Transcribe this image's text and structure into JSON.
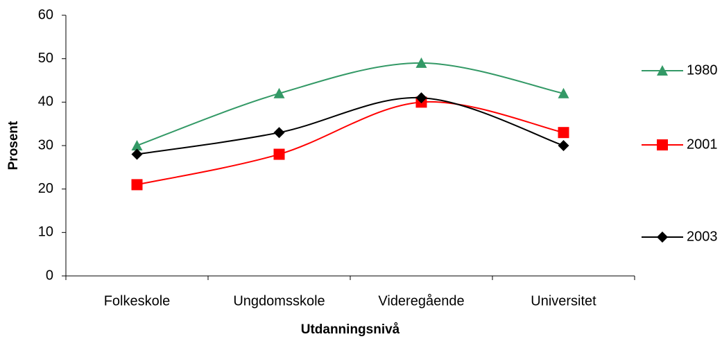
{
  "chart_data": {
    "type": "line",
    "smooth": true,
    "x_label": "Utdanningsnivå",
    "y_label": "Prosent",
    "categories": [
      "Folkeskole",
      "Ungdomsskole",
      "Videregående",
      "Universitet"
    ],
    "series": [
      {
        "name": "1980",
        "color": "#339966",
        "marker": "triangle",
        "values": [
          30,
          42,
          49,
          42
        ]
      },
      {
        "name": "2001",
        "color": "#ff0000",
        "marker": "square",
        "values": [
          21,
          28,
          40,
          33
        ]
      },
      {
        "name": "2003",
        "color": "#000000",
        "marker": "diamond",
        "values": [
          28,
          33,
          41,
          30
        ]
      }
    ],
    "ylim": [
      0,
      60
    ],
    "yticks": [
      0,
      10,
      20,
      30,
      40,
      50,
      60
    ],
    "grid": false,
    "legend": "right"
  }
}
